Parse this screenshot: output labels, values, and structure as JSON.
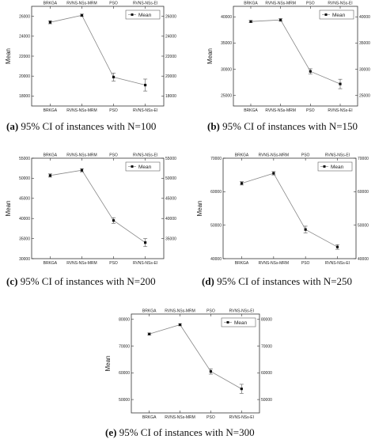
{
  "chart_data": [
    {
      "type": "line",
      "categories": [
        "BRKGA",
        "RVNS-NSs-MRM",
        "PSO",
        "RVNS-NSs-EI"
      ],
      "series": [
        {
          "name": "Mean",
          "values": [
            25400,
            26100,
            19900,
            19100
          ],
          "ci": [
            [
              25250,
              25550
            ],
            [
              25980,
              26220
            ],
            [
              19500,
              20300
            ],
            [
              18500,
              19700
            ]
          ]
        }
      ],
      "ylabel": "Mean",
      "ylim": [
        17000,
        27000
      ],
      "yticks": [
        18000,
        20000,
        22000,
        24000,
        26000
      ],
      "caption_label": "(a)",
      "caption_text": "95% CI of instances with N=100"
    },
    {
      "type": "line",
      "categories": [
        "BRKGA",
        "RVNS-NSs-MRM",
        "PSO",
        "RVNS-NSs-EI"
      ],
      "series": [
        {
          "name": "Mean",
          "values": [
            39100,
            39400,
            29600,
            27200
          ],
          "ci": [
            [
              38900,
              39300
            ],
            [
              39150,
              39650
            ],
            [
              29100,
              30100
            ],
            [
              26300,
              28100
            ]
          ]
        }
      ],
      "ylabel": "Mean",
      "ylim": [
        23000,
        42000
      ],
      "yticks": [
        25000,
        30000,
        35000,
        40000
      ],
      "caption_label": "(b)",
      "caption_text": "95% CI of instances with N=150"
    },
    {
      "type": "line",
      "categories": [
        "BRKGA",
        "RVNS-NSs-MRM",
        "PSO",
        "RVNS-NSs-EI"
      ],
      "series": [
        {
          "name": "Mean",
          "values": [
            50700,
            52000,
            39500,
            34000
          ],
          "ci": [
            [
              50300,
              51100
            ],
            [
              51600,
              52400
            ],
            [
              38800,
              40200
            ],
            [
              33000,
              35000
            ]
          ]
        }
      ],
      "ylabel": "Mean",
      "ylim": [
        30000,
        55000
      ],
      "yticks": [
        30000,
        35000,
        40000,
        45000,
        50000,
        55000
      ],
      "caption_label": "(c)",
      "caption_text": "95% CI of instances with N=200"
    },
    {
      "type": "line",
      "categories": [
        "BRKGA",
        "RVNS-NSs-MRM",
        "PSO",
        "RVNS-NSs-EI"
      ],
      "series": [
        {
          "name": "Mean",
          "values": [
            62500,
            65500,
            48700,
            43500
          ],
          "ci": [
            [
              62000,
              63000
            ],
            [
              65000,
              66000
            ],
            [
              47700,
              49700
            ],
            [
              42800,
              44200
            ]
          ]
        }
      ],
      "ylabel": "Mean",
      "ylim": [
        40000,
        70000
      ],
      "yticks": [
        40000,
        50000,
        60000,
        70000
      ],
      "caption_label": "(d)",
      "caption_text": "95% CI of instances with N=250"
    },
    {
      "type": "line",
      "categories": [
        "BRKGA",
        "RVNS-NSs-MRM",
        "PSO",
        "RVNS-NSs-EI"
      ],
      "series": [
        {
          "name": "Mean",
          "values": [
            74500,
            78000,
            60500,
            54000
          ],
          "ci": [
            [
              74100,
              74900
            ],
            [
              77600,
              78400
            ],
            [
              59500,
              61500
            ],
            [
              52300,
              55700
            ]
          ]
        }
      ],
      "ylabel": "Mean",
      "ylim": [
        45000,
        82000
      ],
      "yticks": [
        50000,
        60000,
        70000,
        80000
      ],
      "caption_label": "(e)",
      "caption_text": "95% CI of instances with N=300"
    }
  ]
}
